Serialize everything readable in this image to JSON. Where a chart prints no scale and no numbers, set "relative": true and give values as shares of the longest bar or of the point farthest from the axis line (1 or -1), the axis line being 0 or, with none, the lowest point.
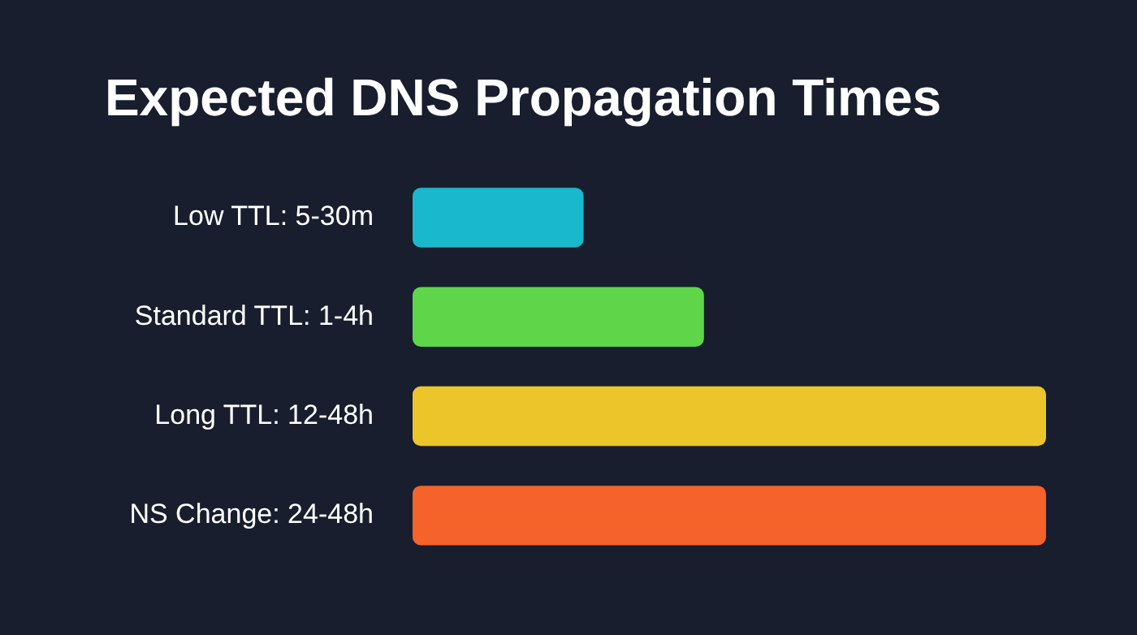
{
  "chart_data": {
    "type": "bar",
    "orientation": "horizontal",
    "relative": true,
    "title": "Expected DNS Propagation Times",
    "categories": [
      "Low TTL: 5-30m",
      "Standard TTL: 1-4h",
      "Long TTL: 12-48h",
      "NS Change: 24-48h"
    ],
    "values": [
      0.27,
      0.46,
      1,
      1
    ],
    "colors": [
      "#19b8cc",
      "#5fd64a",
      "#ecc52a",
      "#f5622a"
    ]
  }
}
